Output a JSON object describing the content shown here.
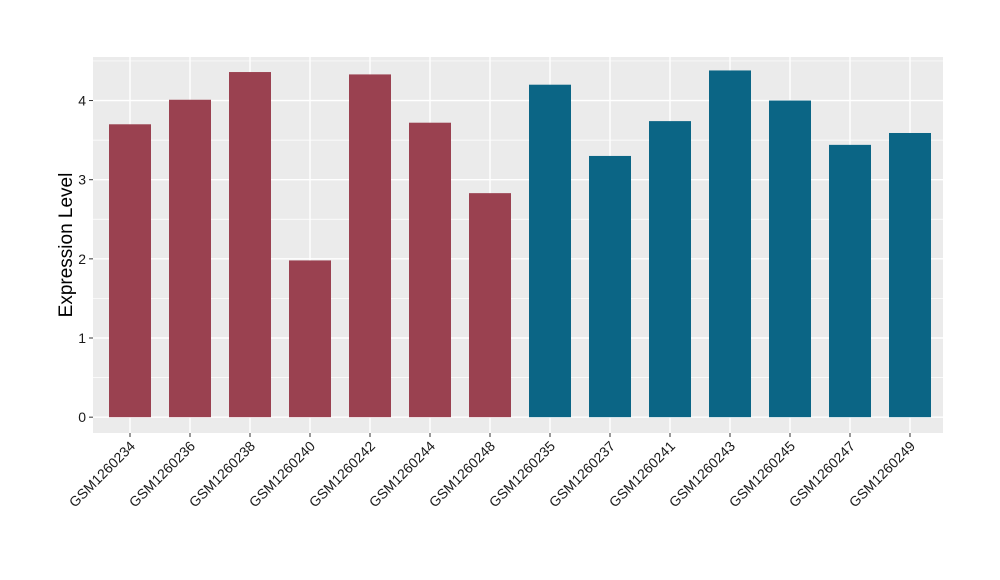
{
  "chart_data": {
    "type": "bar",
    "title": "",
    "xlabel": "",
    "ylabel": "Expression Level",
    "ylim": [
      -0.2,
      4.55
    ],
    "yticks": [
      0,
      1,
      2,
      3,
      4
    ],
    "grid": true,
    "legend": "none",
    "panel_background": "#ebebeb",
    "grid_color": "#ffffff",
    "categories": [
      "GSM1260234",
      "GSM1260236",
      "GSM1260238",
      "GSM1260240",
      "GSM1260242",
      "GSM1260244",
      "GSM1260248",
      "GSM1260235",
      "GSM1260237",
      "GSM1260241",
      "GSM1260243",
      "GSM1260245",
      "GSM1260247",
      "GSM1260249"
    ],
    "values": [
      3.7,
      4.01,
      4.36,
      1.98,
      4.33,
      3.72,
      2.83,
      4.2,
      3.3,
      3.74,
      4.38,
      4.0,
      3.44,
      3.59
    ],
    "colors": [
      "#9a4150",
      "#9a4150",
      "#9a4150",
      "#9a4150",
      "#9a4150",
      "#9a4150",
      "#9a4150",
      "#0b6585",
      "#0b6585",
      "#0b6585",
      "#0b6585",
      "#0b6585",
      "#0b6585",
      "#0b6585"
    ]
  }
}
